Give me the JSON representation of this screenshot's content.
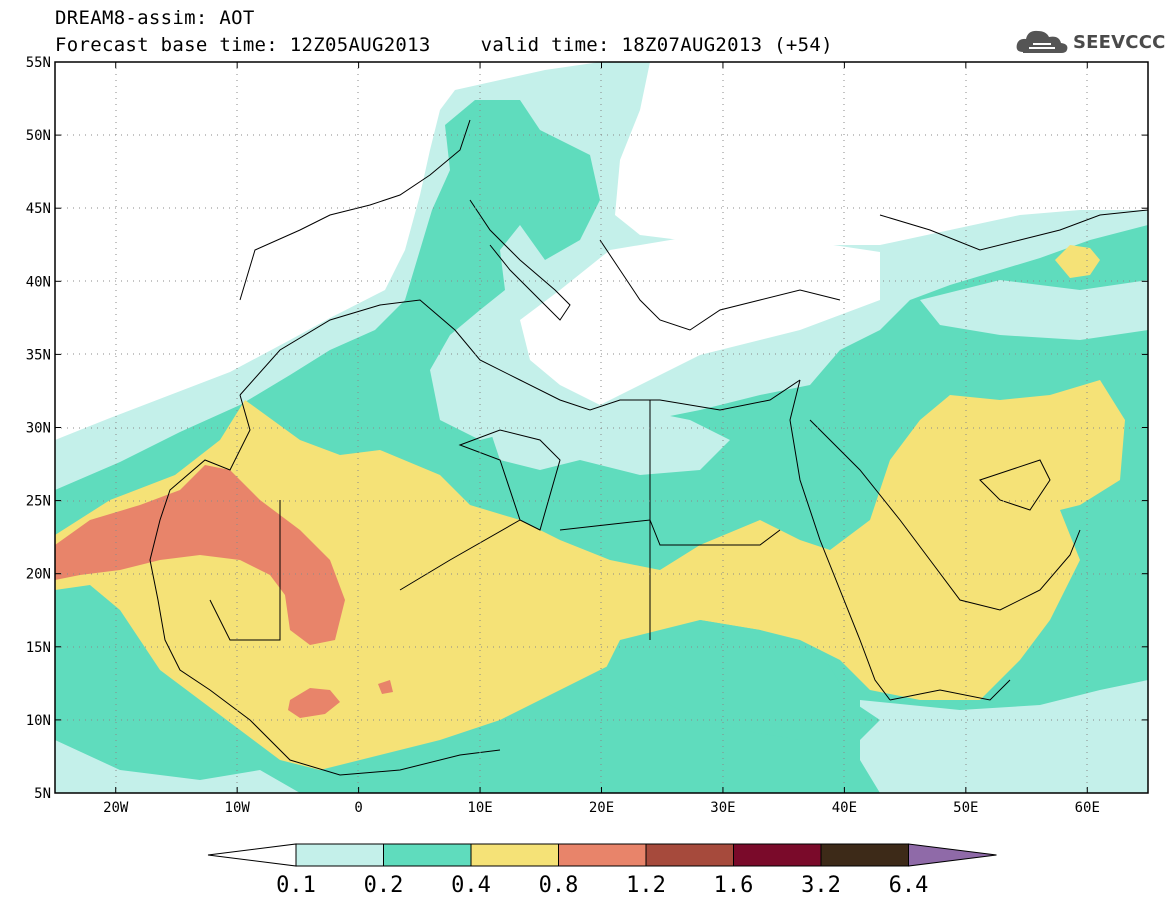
{
  "header": {
    "title_line1": "DREAM8-assim: AOT",
    "base_time": "Forecast base time: 12Z05AUG2013",
    "valid_time": "valid time: 18Z07AUG2013 (+54)",
    "logo_text": "SEEVCCC"
  },
  "map": {
    "lon_range": [
      -25,
      65
    ],
    "lat_range": [
      5,
      55
    ],
    "lat_labels": [
      "55N",
      "50N",
      "45N",
      "40N",
      "35N",
      "30N",
      "25N",
      "20N",
      "15N",
      "10N",
      "5N"
    ],
    "lon_labels": [
      "20W",
      "10W",
      "0",
      "10E",
      "20E",
      "30E",
      "40E",
      "50E",
      "60E"
    ]
  },
  "colorbar": {
    "labels": [
      "0.1",
      "0.2",
      "0.4",
      "0.8",
      "1.2",
      "1.6",
      "3.2",
      "6.4"
    ],
    "colors": [
      "#ffffff",
      "#c4f0ea",
      "#5fdcbd",
      "#f5e277",
      "#e8846a",
      "#a64a3c",
      "#7a0a2a",
      "#3d2a18",
      "#8f6aa8"
    ]
  }
}
